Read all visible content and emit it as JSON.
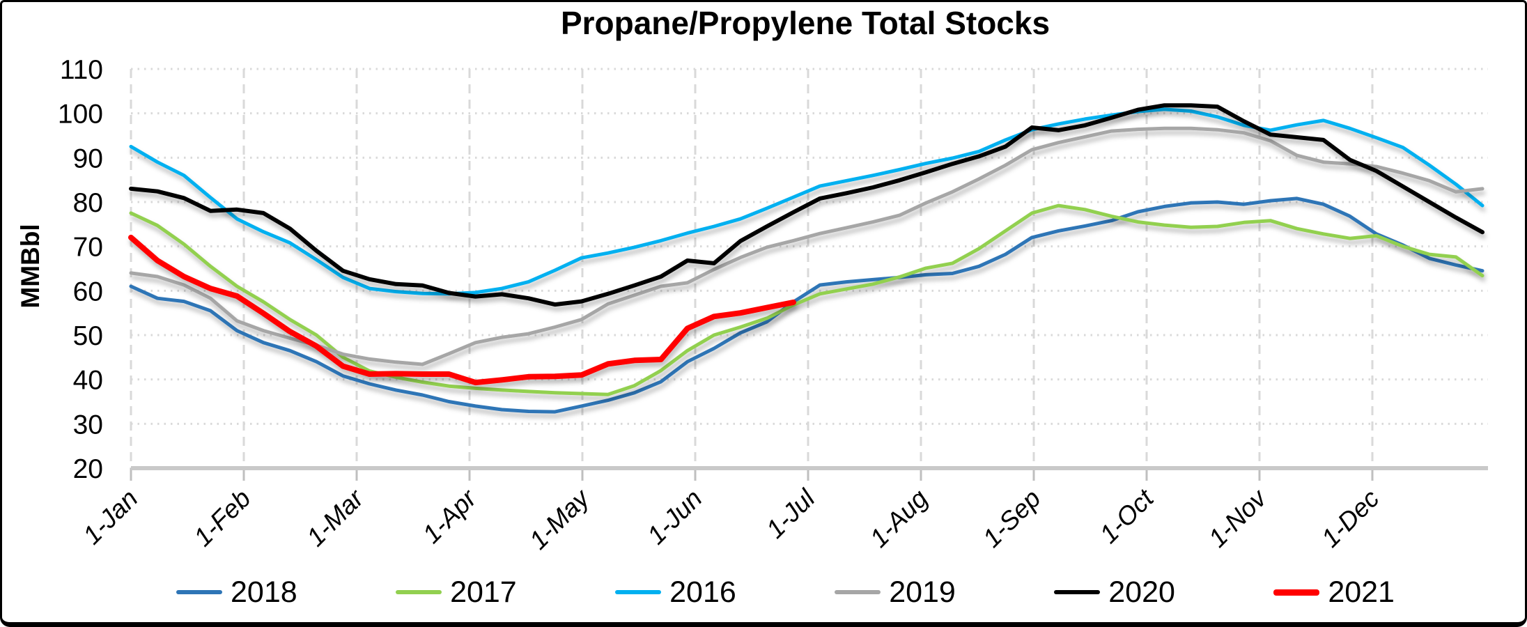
{
  "title": "Propane/Propylene Total Stocks",
  "y_axis": {
    "label": "MMBbl",
    "tick_values": [
      110,
      100,
      90,
      80,
      70,
      60,
      50,
      40,
      30,
      20
    ]
  },
  "x_axis": {
    "tick_labels": [
      "1-Jan",
      "1-Feb",
      "1-Mar",
      "1-Apr",
      "1-May",
      "1-Jun",
      "1-Jul",
      "1-Aug",
      "1-Sep",
      "1-Oct",
      "1-Nov",
      "1-Dec"
    ]
  },
  "legend": {
    "items": [
      {
        "label": "2018",
        "color": "#2E75B6"
      },
      {
        "label": "2017",
        "color": "#92D050"
      },
      {
        "label": "2016",
        "color": "#00B0F0"
      },
      {
        "label": "2019",
        "color": "#A6A6A6"
      },
      {
        "label": "2020",
        "color": "#000000"
      },
      {
        "label": "2021",
        "color": "#FF0000"
      }
    ]
  },
  "chart_data": {
    "type": "line",
    "title": "Propane/Propylene Total Stocks",
    "xlabel": "",
    "ylabel": "MMBbl",
    "ylim": [
      20,
      110
    ],
    "grid": true,
    "legend_position": "bottom",
    "x_tick_labels": [
      "1-Jan",
      "1-Feb",
      "1-Mar",
      "1-Apr",
      "1-May",
      "1-Jun",
      "1-Jul",
      "1-Aug",
      "1-Sep",
      "1-Oct",
      "1-Nov",
      "1-Dec"
    ],
    "points_per_year": 52,
    "unit": "MMBbl (weekly values read from chart)",
    "series": [
      {
        "name": "2018",
        "color": "#2E75B6",
        "width": 5,
        "values": [
          61.0,
          58.3,
          57.6,
          55.5,
          51.0,
          48.3,
          46.5,
          44.0,
          40.8,
          39.0,
          37.6,
          36.5,
          35.0,
          34.0,
          33.2,
          32.8,
          32.7,
          34.0,
          35.3,
          37.0,
          39.5,
          44.0,
          47.0,
          50.5,
          53.0,
          57.5,
          61.3,
          62.0,
          62.5,
          63.0,
          63.6,
          63.9,
          65.5,
          68.2,
          72.0,
          73.5,
          74.6,
          75.8,
          77.8,
          79.0,
          79.8,
          80.0,
          79.5,
          80.3,
          80.8,
          79.5,
          76.8,
          72.8,
          70.3,
          67.3,
          65.8,
          64.5
        ]
      },
      {
        "name": "2017",
        "color": "#92D050",
        "width": 5,
        "values": [
          77.5,
          74.7,
          70.5,
          65.5,
          61.0,
          57.5,
          53.5,
          50.0,
          45.0,
          41.9,
          40.5,
          39.4,
          38.5,
          38.0,
          37.6,
          37.3,
          37.0,
          36.8,
          36.6,
          38.6,
          42.0,
          46.5,
          50.0,
          51.8,
          53.8,
          56.8,
          59.3,
          60.4,
          61.5,
          63.1,
          65.1,
          66.2,
          69.5,
          73.5,
          77.5,
          79.2,
          78.3,
          76.8,
          75.5,
          74.8,
          74.3,
          74.5,
          75.4,
          75.8,
          74.0,
          72.8,
          71.8,
          72.4,
          70.0,
          68.2,
          67.6,
          63.4
        ]
      },
      {
        "name": "2016",
        "color": "#00B0F0",
        "width": 5,
        "values": [
          92.5,
          89.0,
          86.0,
          81.0,
          76.2,
          73.3,
          70.8,
          67.0,
          63.0,
          60.5,
          59.8,
          59.4,
          59.3,
          59.6,
          60.5,
          62.0,
          64.6,
          67.4,
          68.5,
          69.8,
          71.3,
          73.0,
          74.5,
          76.2,
          78.6,
          81.1,
          83.6,
          84.8,
          86.0,
          87.3,
          88.7,
          89.9,
          91.4,
          94.0,
          96.3,
          97.6,
          98.7,
          99.6,
          100.4,
          100.9,
          100.5,
          99.2,
          97.3,
          96.2,
          97.4,
          98.4,
          96.6,
          94.5,
          92.3,
          88.3,
          84.0,
          79.2
        ]
      },
      {
        "name": "2019",
        "color": "#A6A6A6",
        "width": 5,
        "values": [
          64.0,
          63.2,
          61.3,
          58.3,
          53.2,
          51.0,
          49.3,
          47.7,
          45.7,
          44.6,
          43.9,
          43.4,
          45.8,
          48.3,
          49.5,
          50.3,
          51.8,
          53.5,
          57.0,
          59.0,
          61.0,
          61.8,
          64.8,
          67.5,
          69.8,
          71.3,
          72.9,
          74.2,
          75.5,
          77.0,
          79.8,
          82.3,
          85.2,
          88.3,
          91.8,
          93.4,
          94.7,
          96.0,
          96.4,
          96.6,
          96.6,
          96.3,
          95.6,
          93.8,
          90.5,
          89.0,
          88.6,
          88.0,
          86.5,
          84.8,
          82.3,
          83.0
        ]
      },
      {
        "name": "2020",
        "color": "#000000",
        "width": 6,
        "values": [
          83.0,
          82.4,
          80.9,
          78.0,
          78.3,
          77.5,
          74.0,
          69.0,
          64.5,
          62.6,
          61.5,
          61.2,
          59.5,
          58.7,
          59.2,
          58.3,
          56.9,
          57.6,
          59.3,
          61.2,
          63.2,
          66.8,
          66.2,
          71.2,
          74.5,
          77.7,
          80.8,
          82.0,
          83.3,
          84.9,
          86.7,
          88.6,
          90.3,
          92.5,
          96.8,
          96.2,
          97.3,
          99.0,
          100.8,
          101.8,
          101.8,
          101.5,
          98.2,
          95.2,
          94.6,
          94.0,
          89.5,
          87.0,
          83.5,
          80.0,
          76.5,
          73.2
        ]
      },
      {
        "name": "2021",
        "color": "#FF0000",
        "width": 8,
        "values": [
          72.0,
          66.8,
          63.2,
          60.5,
          58.8,
          54.9,
          50.8,
          47.5,
          43.0,
          41.2,
          41.3,
          41.2,
          41.2,
          39.3,
          39.9,
          40.6,
          40.7,
          41.0,
          43.5,
          44.3,
          44.5,
          51.5,
          54.2,
          55.0,
          56.2,
          57.4
        ]
      }
    ]
  }
}
